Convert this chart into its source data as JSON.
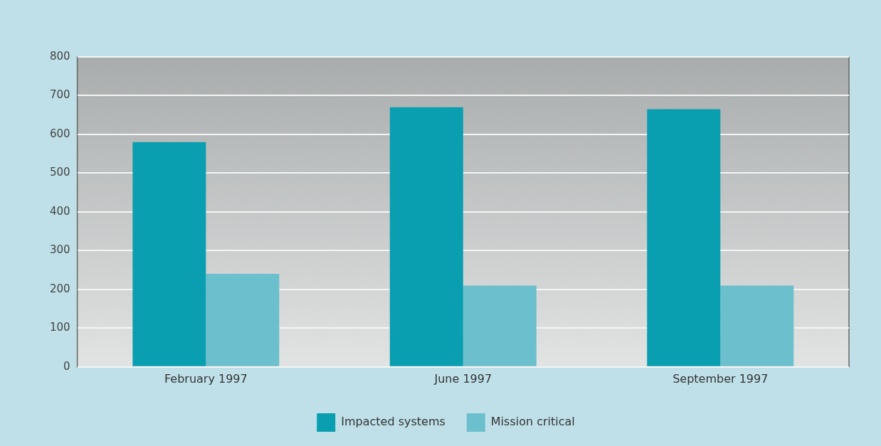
{
  "chart_data": {
    "type": "bar",
    "categories": [
      "February 1997",
      "June 1997",
      "September 1997"
    ],
    "series": [
      {
        "name": "Impacted systems",
        "color": "#0a9fb0",
        "values": [
          580,
          670,
          665
        ]
      },
      {
        "name": "Mission critical",
        "color": "#6cbfcc",
        "values": [
          240,
          210,
          210
        ]
      }
    ],
    "ylim": [
      0,
      800
    ],
    "yticks": [
      0,
      100,
      200,
      300,
      400,
      500,
      600,
      700,
      800
    ],
    "grid": "y",
    "legend": "bottom"
  }
}
